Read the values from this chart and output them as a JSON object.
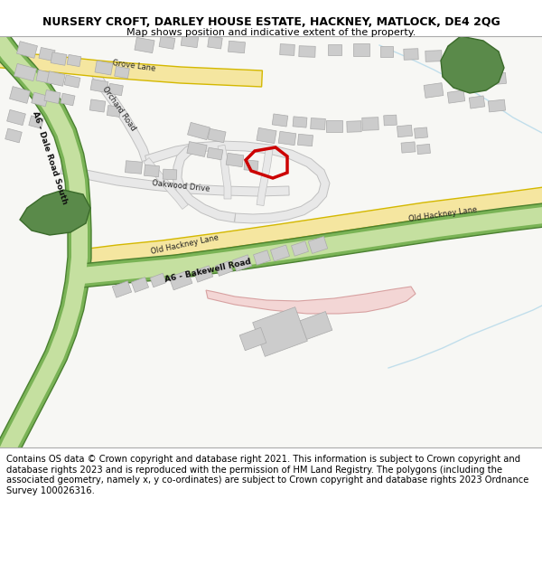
{
  "title": "NURSERY CROFT, DARLEY HOUSE ESTATE, HACKNEY, MATLOCK, DE4 2QG",
  "subtitle": "Map shows position and indicative extent of the property.",
  "footer": "Contains OS data © Crown copyright and database right 2021. This information is subject to Crown copyright and database rights 2023 and is reproduced with the permission of HM Land Registry. The polygons (including the associated geometry, namely x, y co-ordinates) are subject to Crown copyright and database rights 2023 Ordnance Survey 100026316.",
  "map_bg": "#f7f7f4",
  "road_yellow_fill": "#f5e6a0",
  "road_yellow_border": "#d4b800",
  "road_green_dark": "#7ab356",
  "road_green_light": "#c5e0a0",
  "road_gray_fill": "#e8e8e8",
  "road_gray_border": "#c0c0c0",
  "building_gray": "#cccccc",
  "building_outline": "#aaaaaa",
  "tree_green": "#5a8a4a",
  "plot_red": "#cc0000",
  "pink_area": "#f2cece",
  "water_blue": "#aad4e8",
  "title_fontsize": 9.0,
  "subtitle_fontsize": 8.0,
  "footer_fontsize": 7.2
}
